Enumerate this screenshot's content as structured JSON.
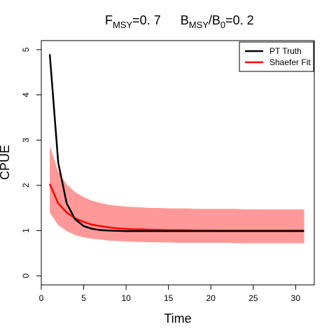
{
  "chart_data": {
    "type": "line",
    "title": {
      "f_base": "F",
      "f_sub": "MSY",
      "f_value": "=0. 7",
      "b_base": "B",
      "b_sub": "MSY",
      "b_sep": "/B",
      "b_sub0": "0",
      "b_value": "=0. 2"
    },
    "xlabel": "Time",
    "ylabel": "CPUE",
    "xlim": [
      0,
      32.2
    ],
    "ylim": [
      -0.2,
      5.2
    ],
    "xticks": [
      0,
      5,
      10,
      15,
      20,
      25,
      30
    ],
    "yticks": [
      0,
      1,
      2,
      3,
      4,
      5
    ],
    "legend_position": "top-right",
    "series": [
      {
        "name": "PT Truth",
        "color": "#000000",
        "x": [
          1,
          2,
          3,
          4,
          5,
          6,
          7,
          8,
          9,
          10,
          11,
          12,
          13,
          14,
          15,
          16,
          17,
          18,
          19,
          20,
          21,
          22,
          23,
          24,
          25,
          26,
          27,
          28,
          29,
          30,
          31
        ],
        "y": [
          4.9,
          2.5,
          1.6,
          1.25,
          1.1,
          1.04,
          1.01,
          1.0,
          0.995,
          0.99,
          0.99,
          0.99,
          0.99,
          0.99,
          0.99,
          0.99,
          0.99,
          0.99,
          0.99,
          0.99,
          0.99,
          0.99,
          0.99,
          0.99,
          0.99,
          0.99,
          0.99,
          0.99,
          0.99,
          0.99,
          0.99
        ]
      },
      {
        "name": "Shaefer Fit",
        "color": "#ff0000",
        "x": [
          1,
          2,
          3,
          4,
          5,
          6,
          7,
          8,
          9,
          10,
          11,
          12,
          13,
          14,
          15,
          16,
          17,
          18,
          19,
          20,
          21,
          22,
          23,
          24,
          25,
          26,
          27,
          28,
          29,
          30,
          31
        ],
        "y": [
          2.03,
          1.6,
          1.4,
          1.27,
          1.19,
          1.13,
          1.1,
          1.07,
          1.05,
          1.04,
          1.03,
          1.025,
          1.02,
          1.015,
          1.01,
          1.01,
          1.01,
          1.005,
          1.005,
          1.005,
          1.0,
          1.0,
          1.0,
          1.0,
          1.0,
          1.0,
          1.0,
          1.0,
          1.0,
          1.0,
          1.0
        ],
        "band_color": "#ff9999",
        "lower": [
          1.4,
          1.12,
          0.99,
          0.9,
          0.85,
          0.82,
          0.8,
          0.78,
          0.77,
          0.76,
          0.75,
          0.75,
          0.74,
          0.74,
          0.74,
          0.73,
          0.73,
          0.73,
          0.73,
          0.73,
          0.73,
          0.73,
          0.72,
          0.72,
          0.72,
          0.72,
          0.72,
          0.72,
          0.72,
          0.72,
          0.72
        ],
        "upper": [
          2.87,
          2.3,
          2.02,
          1.85,
          1.74,
          1.66,
          1.61,
          1.57,
          1.55,
          1.53,
          1.52,
          1.51,
          1.5,
          1.5,
          1.49,
          1.49,
          1.49,
          1.48,
          1.48,
          1.48,
          1.48,
          1.48,
          1.48,
          1.47,
          1.47,
          1.47,
          1.47,
          1.47,
          1.47,
          1.47,
          1.47
        ]
      }
    ]
  }
}
